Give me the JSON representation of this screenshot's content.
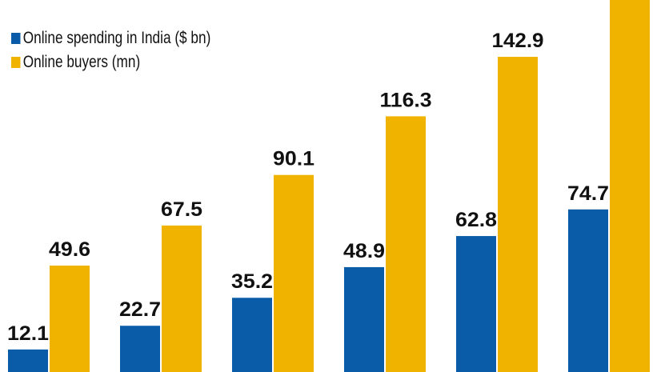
{
  "chart_data": {
    "type": "bar",
    "title": "",
    "xlabel": "",
    "ylabel": "",
    "categories": [
      "",
      "",
      "",
      "",
      "",
      ""
    ],
    "series": [
      {
        "name": "Online spending in India ($ bn)",
        "color": "#0a5ca8",
        "values": [
          12.1,
          22.7,
          35.2,
          48.9,
          62.8,
          74.7
        ]
      },
      {
        "name": "Online buyers (mn)",
        "color": "#f0b400",
        "values": [
          49.6,
          67.5,
          90.1,
          116.3,
          142.9,
          null
        ]
      }
    ],
    "legend_placement": "top-left",
    "grid": false,
    "data_labels": true,
    "last_buyers_bar_exceeds_view": true
  }
}
